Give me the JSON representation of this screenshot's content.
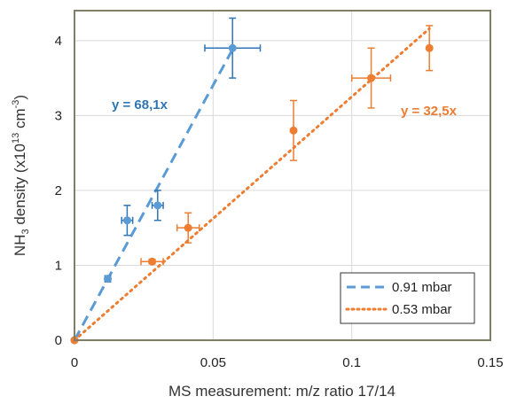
{
  "chart_data": {
    "type": "scatter",
    "xlabel": "MS measurement: m/z ratio 17/14",
    "ylabel_parts": [
      "NH",
      "3",
      " density (x10",
      "13",
      " cm",
      "-3",
      ")"
    ],
    "xlim": [
      0,
      0.15
    ],
    "ylim": [
      0,
      4.4
    ],
    "x_ticks": [
      0,
      0.05,
      0.1,
      0.15
    ],
    "x_tick_labels": [
      "0",
      "0.05",
      "0.1",
      "0.15"
    ],
    "y_ticks": [
      0,
      1,
      2,
      3,
      4
    ],
    "y_tick_labels": [
      "0",
      "1",
      "2",
      "3",
      "4"
    ],
    "grid": true,
    "legend_position": "bottom-right",
    "series": [
      {
        "name": "0.91 mbar",
        "color": "#5B9BD5",
        "label_color": "#2E75B6",
        "marker_color": "#5B9BD5",
        "errorbar_color": "#2E75B6",
        "trendline_style": "dashed",
        "trend_equation": "y = 68,1x",
        "slope": 68.1,
        "trend_x_range": [
          0,
          0.057
        ],
        "points": [
          {
            "x": 0,
            "y": 0,
            "xerr": 0,
            "yerr": 0
          },
          {
            "x": 0.012,
            "y": 0.82,
            "xerr": 0.0008,
            "yerr": 0.04
          },
          {
            "x": 0.019,
            "y": 1.6,
            "xerr": 0.002,
            "yerr": 0.2
          },
          {
            "x": 0.03,
            "y": 1.8,
            "xerr": 0.002,
            "yerr": 0.2
          },
          {
            "x": 0.057,
            "y": 3.9,
            "xerr": 0.01,
            "yerr": 0.4
          }
        ]
      },
      {
        "name": "0.53 mbar",
        "color": "#ED7D31",
        "label_color": "#ED7D31",
        "marker_color": "#ED7D31",
        "errorbar_color": "#ED7D31",
        "trendline_style": "dotted",
        "trend_equation": "y = 32,5x",
        "slope": 32.5,
        "trend_x_range": [
          0,
          0.128
        ],
        "points": [
          {
            "x": 0,
            "y": 0,
            "xerr": 0,
            "yerr": 0
          },
          {
            "x": 0.028,
            "y": 1.05,
            "xerr": 0.004,
            "yerr": 0.03
          },
          {
            "x": 0.041,
            "y": 1.5,
            "xerr": 0.004,
            "yerr": 0.2
          },
          {
            "x": 0.079,
            "y": 2.8,
            "xerr": 0.0,
            "yerr": 0.4
          },
          {
            "x": 0.107,
            "y": 3.5,
            "xerr": 0.007,
            "yerr": 0.4
          },
          {
            "x": 0.128,
            "y": 3.9,
            "xerr": 0.0,
            "yerr": 0.3
          }
        ]
      }
    ]
  }
}
